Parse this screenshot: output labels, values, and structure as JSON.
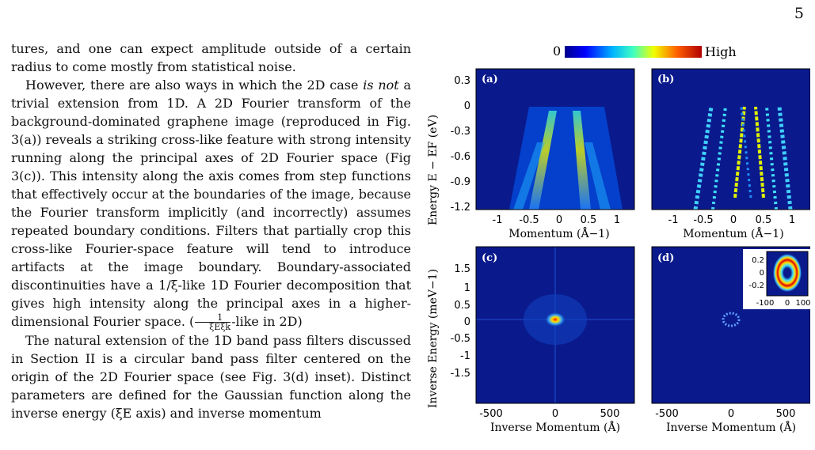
{
  "page_number": "5",
  "text": {
    "p1": "tures, and one can expect amplitude outside of a certain radius to come mostly from statistical noise.",
    "p2_a": "However, there are also ways in which the 2D case ",
    "p2_em": "is not",
    "p2_b": " a trivial extension from 1D. A 2D Fourier transform of the background-dominated graphene image (reproduced in Fig. 3(a)) reveals a striking cross-like feature with strong intensity running along the principal axes of 2D Fourier space (Fig 3(c)). This intensity along the axis comes from step functions that effectively occur at the boundaries of the image, because the Fourier transform implicitly (and incorrectly) assumes repeated boundary conditions. Filters that partially crop this cross-like Fourier-space feature will tend to introduce artifacts at the image boundary. Boundary-associated discontinuities have a 1/ξ-like 1D Fourier decomposition that gives high intensity along the principal axes in a higher-dimensional Fourier space. (",
    "p2_frac_num": "1",
    "p2_frac_den": "ξEξk",
    "p2_c": "-like in 2D)",
    "p3": "The natural extension of the 1D band pass filters discussed in Section II is a circular band pass filter centered on the origin of the 2D Fourier space (see Fig. 3(d) inset). Distinct parameters are defined for the Gaussian function along the inverse energy (ξE axis) and inverse momentum"
  },
  "figure": {
    "colorbar": {
      "low": "0",
      "high": "High"
    },
    "panels": {
      "a": "(a)",
      "b": "(b)",
      "c": "(c)",
      "d": "(d)"
    },
    "top_ylabel": "Energy  E − EF (eV)",
    "top_xlabel": "Momentum (Å−1)",
    "top_yticks": [
      "0.3",
      "0",
      "-0.3",
      "-0.6",
      "-0.9",
      "-1.2"
    ],
    "top_xticks": [
      "-1",
      "-0.5",
      "0",
      "0.5",
      "1"
    ],
    "bottom_ylabel": "Inverse Energy (meV−1)",
    "bottom_xlabel": "Inverse Momentum (Å)",
    "bottom_yticks": [
      "1.5",
      "1",
      "0.5",
      "0",
      "-0.5",
      "-1",
      "-1.5"
    ],
    "bottom_xticks": [
      "-500",
      "0",
      "500"
    ],
    "inset_yticks": [
      "0.2",
      "0",
      "-0.2"
    ],
    "inset_xticks": [
      "-100",
      "0",
      "100"
    ],
    "colors": {
      "bg": "#0a1a8c",
      "dark": "#00008b",
      "highlight": "#ffd21a"
    }
  }
}
